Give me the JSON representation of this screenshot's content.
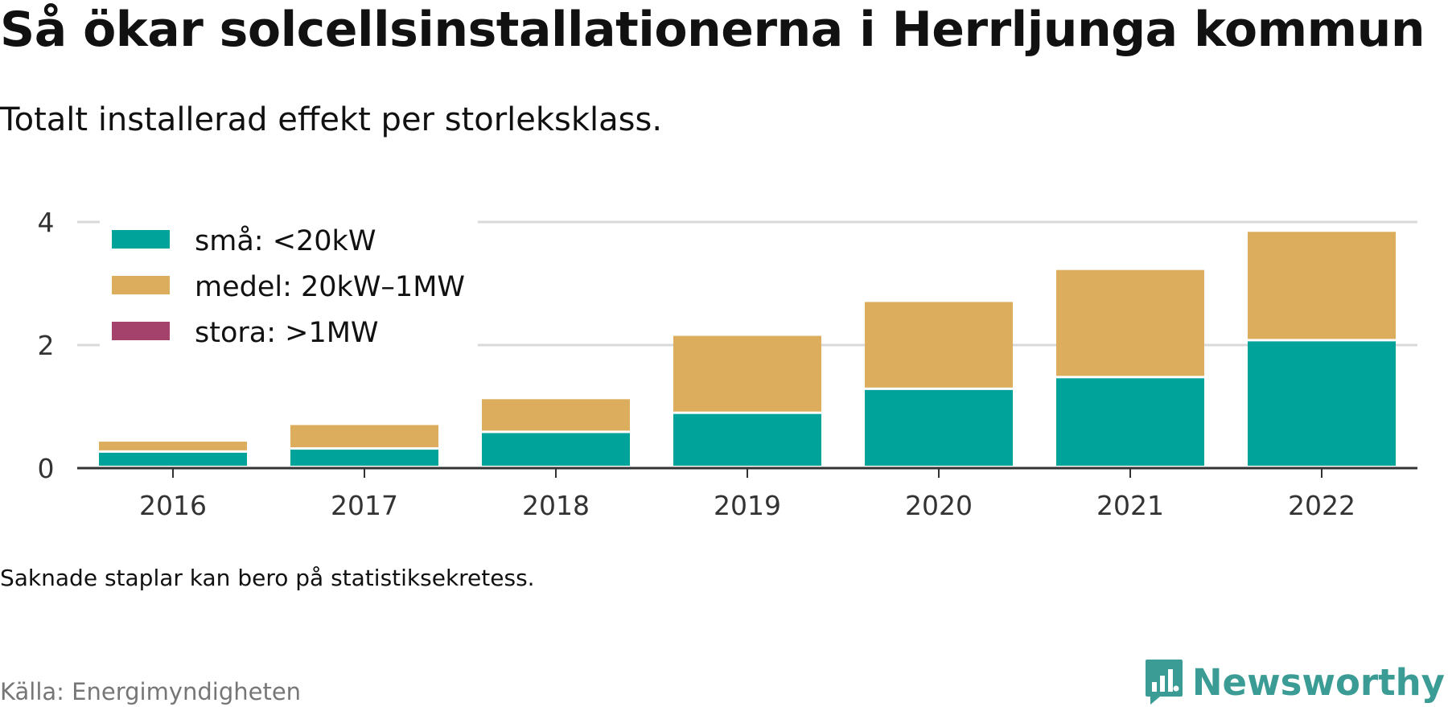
{
  "header": {
    "title": "Så ökar solcellsinstallationerna i Herrljunga kommun",
    "subtitle": "Totalt installerad effekt per storleksklass."
  },
  "footer": {
    "note": "Saknade staplar kan bero på statistiksekretess.",
    "source": "Källa: Energimyndigheten",
    "brand": "Newsworthy"
  },
  "brand_icon": "newsworthy-logo-icon",
  "colors": {
    "sma": "#00a39a",
    "medel": "#dcad5c",
    "stora": "#a4426c",
    "grid": "#d9d9d9",
    "axis": "#333333",
    "brand": "#3a9c94"
  },
  "chart_data": {
    "type": "bar",
    "stacked": true,
    "categories": [
      "2016",
      "2017",
      "2018",
      "2019",
      "2020",
      "2021",
      "2022"
    ],
    "series": [
      {
        "name": "små: <20kW",
        "color": "#00a39a",
        "values": [
          0.25,
          0.3,
          0.57,
          0.88,
          1.27,
          1.46,
          2.06
        ]
      },
      {
        "name": "medel: 20kW–1MW",
        "color": "#dcad5c",
        "values": [
          0.18,
          0.4,
          0.55,
          1.27,
          1.43,
          1.76,
          1.78
        ]
      },
      {
        "name": "stora: >1MW",
        "color": "#a4426c",
        "values": [
          0,
          0,
          0,
          0,
          0,
          0,
          0
        ]
      }
    ],
    "yticks": [
      "0",
      "2",
      "4"
    ],
    "ylim": [
      0,
      4
    ],
    "grid": true,
    "legend": "top-left"
  }
}
